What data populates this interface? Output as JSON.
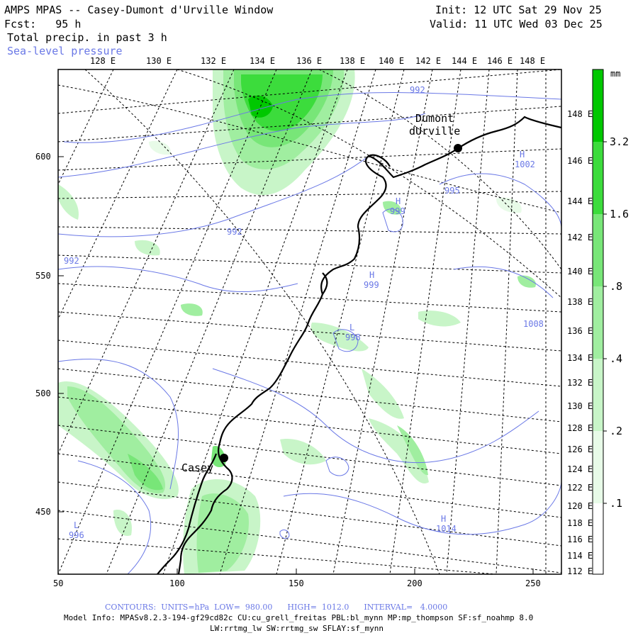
{
  "header": {
    "title": "AMPS MPAS -- Casey-Dumont d'Urville Window",
    "init": "Init: 12 UTC Sat 29 Nov 25",
    "forecast": "Fcst:   95 h",
    "valid": "Valid: 11 UTC Wed 03 Dec 25",
    "field1": "Total precip. in past 3 h",
    "field2": "Sea-level pressure"
  },
  "top_lon_labels": [
    "128 E",
    "130 E",
    "132 E",
    "134 E",
    "136 E",
    "138 E",
    "140 E",
    "142 E",
    "144 E",
    "146 E",
    "148 E"
  ],
  "right_lon_labels": [
    "148 E",
    "146 E",
    "144 E",
    "142 E",
    "140 E",
    "138 E",
    "136 E",
    "134 E",
    "132 E",
    "130 E",
    "128 E",
    "126 E",
    "124 E",
    "122 E",
    "120 E",
    "118 E",
    "116 E",
    "114 E",
    "112 E"
  ],
  "y_ticks": [
    "600",
    "550",
    "500",
    "450"
  ],
  "x_ticks": [
    "50",
    "100",
    "150",
    "200",
    "250"
  ],
  "stations": [
    {
      "name": "Casey"
    },
    {
      "name": "Dumont\ndUrville"
    }
  ],
  "pressure_labels": [
    "992",
    "992",
    "992",
    "1002",
    "995",
    "999",
    "999",
    "998",
    "1008",
    "1014",
    "996"
  ],
  "high_low_marks": [
    "H",
    "H",
    "H",
    "L",
    "H",
    "L"
  ],
  "colorbar": {
    "unit": "mm",
    "levels": [
      "3.2",
      "1.6",
      ".8",
      ".4",
      ".2",
      ".1"
    ],
    "colors": [
      "#00c800",
      "#3cdc3c",
      "#78e678",
      "#a0eea0",
      "#c8f5c8",
      "#e8fbe8"
    ]
  },
  "footer": {
    "contours": "CONTOURS:  UNITS=hPa  LOW=  980.00      HIGH=  1012.0      INTERVAL=   4.0000",
    "model_info1": "Model Info: MPASv8.2.3-194-gf29cd82c CU:cu_grell_freitas PBL:bl_mynn MP:mp_thompson SF:sf_noahmp 8.0",
    "model_info2": "LW:rrtmg_lw SW:rrtmg_sw SFLAY:sf_mynn"
  }
}
